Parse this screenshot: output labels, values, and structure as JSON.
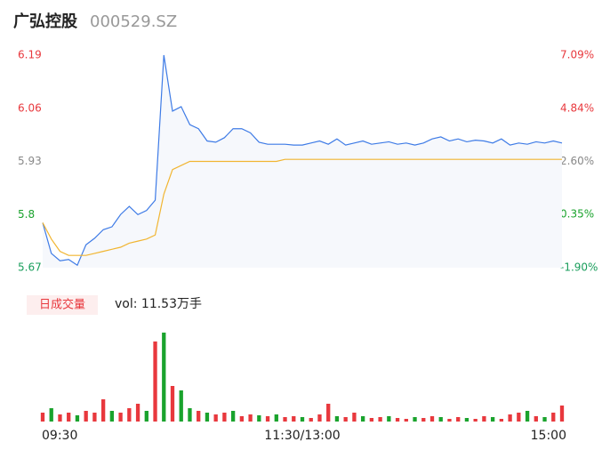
{
  "chart_data": {
    "type": "intraday",
    "title": "广弘控股",
    "subtitle": "000529.SZ",
    "volume_legend": "日成交量",
    "volume_text": "vol: 11.53万手",
    "x": [
      0,
      4,
      8,
      12,
      16,
      20,
      24,
      28,
      32,
      36,
      40,
      44,
      48,
      52,
      56,
      60,
      64,
      68,
      72,
      76,
      80,
      84,
      88,
      92,
      96,
      100,
      104,
      108,
      112,
      116,
      120,
      124,
      128,
      132,
      136,
      140,
      144,
      148,
      152,
      156,
      160,
      164,
      168,
      172,
      176,
      180,
      184,
      188,
      192,
      196,
      200,
      204,
      208,
      212,
      216,
      220,
      224,
      228,
      232,
      236,
      240
    ],
    "xlim": [
      0,
      240
    ],
    "xticks": [
      {
        "value": 0,
        "label": "09:30"
      },
      {
        "value": 120,
        "label": "11:30/13:00"
      },
      {
        "value": 240,
        "label": "15:00"
      }
    ],
    "ylim": [
      5.67,
      6.19
    ],
    "yticks": [
      5.67,
      5.8,
      5.93,
      6.06,
      6.19
    ],
    "y2lim": [
      -1.9,
      7.09
    ],
    "y2ticks": [
      {
        "value": -1.9,
        "label": "-1.90%"
      },
      {
        "value": 0.35,
        "label": "0.35%"
      },
      {
        "value": 2.6,
        "label": "2.60%"
      },
      {
        "value": 4.84,
        "label": "4.84%"
      },
      {
        "value": 7.09,
        "label": "7.09%"
      }
    ],
    "tick_colors": [
      "#1a9e5c",
      "#1aa32d",
      "#888888",
      "#e8383d",
      "#e8383d"
    ],
    "series": [
      {
        "name": "price",
        "color": "#3e7be6",
        "values": [
          5.78,
          5.705,
          5.687,
          5.69,
          5.676,
          5.726,
          5.742,
          5.763,
          5.77,
          5.8,
          5.82,
          5.8,
          5.81,
          5.835,
          6.19,
          6.053,
          6.064,
          6.02,
          6.01,
          5.98,
          5.977,
          5.988,
          6.01,
          6.01,
          6.0,
          5.977,
          5.972,
          5.972,
          5.972,
          5.97,
          5.97,
          5.975,
          5.98,
          5.972,
          5.985,
          5.97,
          5.975,
          5.98,
          5.972,
          5.975,
          5.978,
          5.972,
          5.975,
          5.97,
          5.975,
          5.985,
          5.99,
          5.98,
          5.985,
          5.978,
          5.982,
          5.98,
          5.975,
          5.985,
          5.97,
          5.975,
          5.972,
          5.978,
          5.975,
          5.98,
          5.975
        ]
      },
      {
        "name": "average",
        "color": "#f1b531",
        "values": [
          5.78,
          5.74,
          5.71,
          5.7,
          5.7,
          5.7,
          5.705,
          5.71,
          5.715,
          5.72,
          5.73,
          5.735,
          5.74,
          5.75,
          5.85,
          5.91,
          5.92,
          5.93,
          5.93,
          5.93,
          5.93,
          5.93,
          5.93,
          5.93,
          5.93,
          5.93,
          5.93,
          5.93,
          5.935,
          5.935,
          5.935,
          5.935,
          5.935,
          5.935,
          5.935,
          5.935,
          5.935,
          5.935,
          5.935,
          5.935,
          5.935,
          5.935,
          5.935,
          5.935,
          5.935,
          5.935,
          5.935,
          5.935,
          5.935,
          5.935,
          5.935,
          5.935,
          5.935,
          5.935,
          5.935,
          5.935,
          5.935,
          5.935,
          5.935,
          5.935,
          5.935
        ]
      }
    ],
    "vol_ylim": [
      0,
      100
    ],
    "volume": [
      10,
      15,
      8,
      10,
      7,
      12,
      10,
      25,
      12,
      10,
      15,
      20,
      12,
      90,
      100,
      40,
      35,
      15,
      12,
      10,
      8,
      10,
      12,
      6,
      8,
      7,
      6,
      8,
      5,
      6,
      5,
      4,
      8,
      20,
      6,
      5,
      10,
      6,
      4,
      5,
      6,
      4,
      3,
      5,
      4,
      6,
      5,
      3,
      5,
      4,
      3,
      6,
      5,
      3,
      8,
      10,
      12,
      6,
      5,
      10,
      18
    ],
    "vol_colors": [
      "#e8383d",
      "#1aa32d",
      "#e8383d",
      "#e8383d",
      "#1aa32d",
      "#e8383d",
      "#e8383d",
      "#e8383d",
      "#1aa32d",
      "#e8383d",
      "#e8383d",
      "#e8383d",
      "#1aa32d",
      "#e8383d",
      "#1aa32d",
      "#e8383d",
      "#1aa32d",
      "#1aa32d",
      "#e8383d",
      "#1aa32d",
      "#e8383d",
      "#e8383d",
      "#1aa32d",
      "#e8383d",
      "#e8383d",
      "#1aa32d",
      "#e8383d",
      "#1aa32d",
      "#e8383d",
      "#e8383d",
      "#1aa32d",
      "#e8383d",
      "#e8383d",
      "#e8383d",
      "#1aa32d",
      "#e8383d",
      "#e8383d",
      "#1aa32d",
      "#e8383d",
      "#e8383d",
      "#1aa32d",
      "#e8383d",
      "#e8383d",
      "#1aa32d",
      "#e8383d",
      "#e8383d",
      "#1aa32d",
      "#e8383d",
      "#e8383d",
      "#1aa32d",
      "#e8383d",
      "#e8383d",
      "#1aa32d",
      "#e8383d",
      "#e8383d",
      "#e8383d",
      "#1aa32d",
      "#e8383d",
      "#1aa32d",
      "#e8383d",
      "#e8383d"
    ]
  }
}
